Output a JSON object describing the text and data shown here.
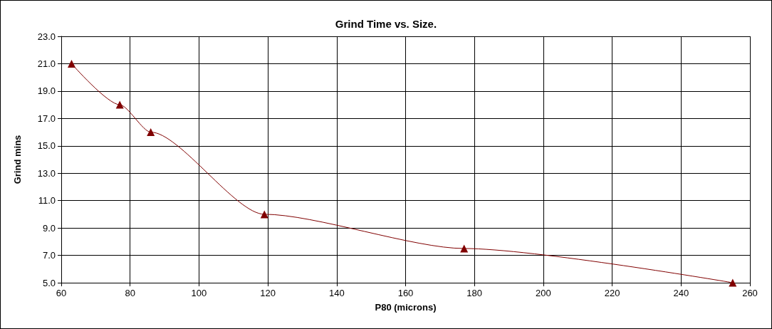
{
  "chart_data": {
    "type": "line",
    "title": "Grind Time vs. Size.",
    "xlabel": "P80 (microns)",
    "ylabel": "Grind mins",
    "x": [
      63,
      77,
      86,
      119,
      177,
      255
    ],
    "series": [
      {
        "color": "#800000",
        "values": [
          21,
          18,
          16,
          10,
          7.5,
          5
        ]
      }
    ],
    "xlim": [
      60,
      260
    ],
    "xticks": [
      60,
      80,
      100,
      120,
      140,
      160,
      180,
      200,
      220,
      240,
      260
    ],
    "ylim": [
      5,
      23
    ],
    "yticks": [
      {
        "value": 5,
        "label": "5.0"
      },
      {
        "value": 7,
        "label": "7.0"
      },
      {
        "value": 9,
        "label": "9.0"
      },
      {
        "value": 11,
        "label": "11.0"
      },
      {
        "value": 13,
        "label": "13.0"
      },
      {
        "value": 15,
        "label": "15.0"
      },
      {
        "value": 17,
        "label": "17.0"
      },
      {
        "value": 19,
        "label": "19.0"
      },
      {
        "value": 21,
        "label": "21.0"
      },
      {
        "value": 23,
        "label": "23.0"
      }
    ],
    "grid": true,
    "marker": "triangle",
    "line_style": "solid"
  }
}
